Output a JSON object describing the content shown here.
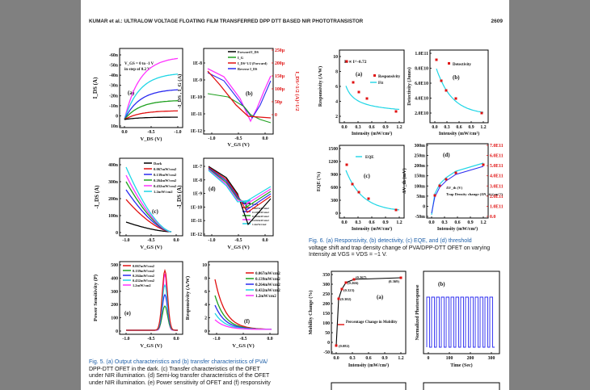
{
  "header": {
    "running_title": "KUMAR et al.: ULTRALOW VOLTAGE FLOATING FILM TRANSFERRED DPP DTT BASED NIR PHOTOTRANSISTOR",
    "page_number": "2609"
  },
  "fig5": {
    "caption_lines": [
      "Fig. 5.  (a) Output characteristics and (b) transfer characteristics of PVA/",
      "DPP-DTT OFET in the dark. (c) Transfer characteristics of the OFET",
      "under NIR illumination. (d) Semi-log transfer characteristics of the OFET",
      "under NIR illumination. (e) Power sensitivity of OFET and (f) responsivity"
    ],
    "panel_a": {
      "label": "(a)",
      "note1": "V_GS = 0 to -1 V",
      "note2": "in step of 0.2 V",
      "ylabel": "I_DS (A)",
      "xlabel": "V_DS (V)",
      "yticks": [
        "-60n",
        "-50n",
        "-40n",
        "-30n",
        "-20n",
        "-10n",
        "0",
        "10n"
      ],
      "xticks": [
        "0.0",
        "-0.5",
        "-1.0"
      ]
    },
    "panel_b": {
      "label": "(b)",
      "ylabel_left": "-I_DS , I_G (A)",
      "ylabel_right": "I_DS^1/2 (A)^1/2",
      "yticks_left": [
        "1E-8",
        "1E-9",
        "1E-10",
        "1E-11",
        "1E-12"
      ],
      "yticks_right": [
        "250μ",
        "200μ",
        "150μ",
        "100μ",
        "50μ",
        "0"
      ],
      "xticks": [
        "-1.0",
        "-0.5",
        "0.0"
      ],
      "xlabel": "V_GS (V)",
      "legend": [
        "Forward I_DS",
        "I_G",
        "I_DS^1/2 (Forward)",
        "Reverse I_DS"
      ]
    },
    "panel_c": {
      "label": "(c)",
      "ylabel": "-I_DS (A)",
      "xlabel": "V_GS (V)",
      "yticks": [
        "400n",
        "300n",
        "200n",
        "100n",
        "0"
      ],
      "xticks": [
        "-1.0",
        "-0.5",
        "0.0"
      ],
      "legend": [
        "Dark",
        "0.067mW/cm2",
        "0.139mW/cm2",
        "0.264mW/cm2",
        "0.432mW/cm2",
        "1.2mW/cm2"
      ]
    },
    "panel_d": {
      "label": "(d)",
      "ylabel": "-I_DS (A)",
      "xlabel": "V_GS (V)",
      "yticks": [
        "1E-7",
        "1E-8",
        "1E-9",
        "1E-10",
        "1E-11",
        "1E-12"
      ],
      "xticks": [
        "-1.0",
        "-0.5",
        "0.0"
      ],
      "legend": [
        "Dark",
        "0.067mW/cm2",
        "0.139mW/cm2",
        "0.264mW/cm2",
        "0.432mW/cm2",
        "1.2mW/cm2"
      ]
    },
    "panel_e": {
      "label": "(e)",
      "ylabel": "Power Sensitivity (P)",
      "xlabel": "V_GS (V)",
      "yticks": [
        "500",
        "400",
        "300",
        "200",
        "100",
        "0"
      ],
      "xticks": [
        "-1.0",
        "-0.5",
        "0.0"
      ],
      "legend": [
        "0.067mW/cm2",
        "0.139mW/cm2",
        "0.264mW/cm2",
        "0.432mW/cm2",
        "1.2mW/cm2"
      ]
    },
    "panel_f": {
      "label": "(f)",
      "ylabel": "Responsivity (A/W)",
      "xlabel": "V_GS (V)",
      "yticks": [
        "10",
        "8",
        "6",
        "4",
        "2",
        "0"
      ],
      "xticks": [
        "-1.0",
        "-0.5",
        "0.0"
      ],
      "legend": [
        "0.067mW/cm2",
        "0.139mW/cm2",
        "0.264mW/cm2",
        "0.432mW/cm2",
        "1.2mW/cm2"
      ]
    }
  },
  "fig6": {
    "caption_lines": [
      "Fig. 6.   (a) Responsivity, (b) detectivity, (c) EQE, and (d) threshold",
      "voltage shift and trap density change of PVA/DPP-DTT OFET on varying",
      "Intensity at VGS = VDS = −1 V."
    ],
    "panel_a": {
      "label": "(a)",
      "ylabel": "Responsivity (A/W)",
      "xlabel": "Intensity (mW/cm²)",
      "formula": "R ∝ I^-0.72",
      "legend": [
        "Responsivity",
        "Fit"
      ],
      "yticks": [
        "10",
        "8",
        "6",
        "4",
        "2"
      ],
      "xticks": [
        "0.0",
        "0.3",
        "0.6",
        "0.9",
        "1.2"
      ]
    },
    "panel_b": {
      "label": "(b)",
      "ylabel": "Detectivity (Jones)",
      "xlabel": "Intensity (mW/cm²)",
      "legend": [
        "Detectivity"
      ],
      "yticks": [
        "1.0E11",
        "8.0E10",
        "6.0E10",
        "4.0E10",
        "2.0E10"
      ],
      "xticks": [
        "0.0",
        "0.3",
        "0.6",
        "0.9",
        "1.2"
      ]
    },
    "panel_c": {
      "label": "(c)",
      "ylabel": "EQE (%)",
      "xlabel": "Intensity (mW/cm²)",
      "legend": [
        "EQE"
      ],
      "yticks": [
        "1500",
        "1200",
        "900",
        "600",
        "300",
        "0"
      ],
      "xticks": [
        "0.0",
        "0.3",
        "0.6",
        "0.9",
        "1.2"
      ]
    },
    "panel_d": {
      "label": "(d)",
      "ylabel_left": "ΔV_th (mV)",
      "ylabel_right": "Trap density change (ΔN_it)",
      "xlabel": "Intensity (mW/cm²)",
      "legend": [
        "ΔV_th (V)",
        "Trap Density change (ΔN_it) (cm⁻²)"
      ],
      "yticks_left": [
        "300m",
        "250m",
        "200m",
        "150m",
        "100m",
        "50m",
        "0",
        "-50m"
      ],
      "yticks_right": [
        "7.0E11",
        "6.0E11",
        "5.0E11",
        "4.0E11",
        "3.0E11",
        "2.0E11",
        "1.0E11",
        "0.0"
      ],
      "xticks": [
        "0.0",
        "0.3",
        "0.6",
        "0.9",
        "1.2"
      ]
    }
  },
  "fig7": {
    "panel_a": {
      "label": "(a)",
      "ylabel": "Mobility Change (%)",
      "xlabel": "Intensity (mW/cm²)",
      "legend": [
        "Percentage Change in Mobility"
      ],
      "yticks": [
        "350",
        "300",
        "250",
        "200",
        "150",
        "100",
        "50",
        "0",
        "-50"
      ],
      "xticks": [
        "0.0",
        "0.3",
        "0.6",
        "0.9",
        "1.2"
      ],
      "point_labels": [
        "(0.082)",
        "(0.302)",
        "(0.323)",
        "(0.266)",
        "(0.367)",
        "(0.369)"
      ]
    },
    "panel_b": {
      "label": "(b)",
      "ylabel": "Normalized Photoresponse",
      "xlabel": "Time (Sec)",
      "xticks": [
        "0",
        "100",
        "200",
        "300"
      ]
    }
  }
}
